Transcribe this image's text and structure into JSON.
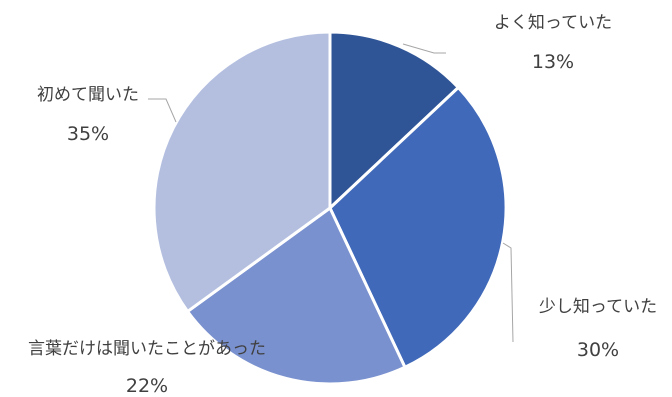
{
  "chart_data": {
    "type": "pie",
    "title": "",
    "start_angle_deg": 0,
    "direction": "clockwise",
    "slices": [
      {
        "label": "よく知っていた",
        "value": 13,
        "value_label": "13%",
        "color": "#2f5597"
      },
      {
        "label": "少し知っていた",
        "value": 30,
        "value_label": "30%",
        "color": "#4069b9"
      },
      {
        "label": "言葉だけは聞いたことがあった",
        "value": 22,
        "value_label": "22%",
        "color": "#7a91cf"
      },
      {
        "label": "初めて聞いた",
        "value": 35,
        "value_label": "35%",
        "color": "#b4bfe0"
      }
    ]
  }
}
